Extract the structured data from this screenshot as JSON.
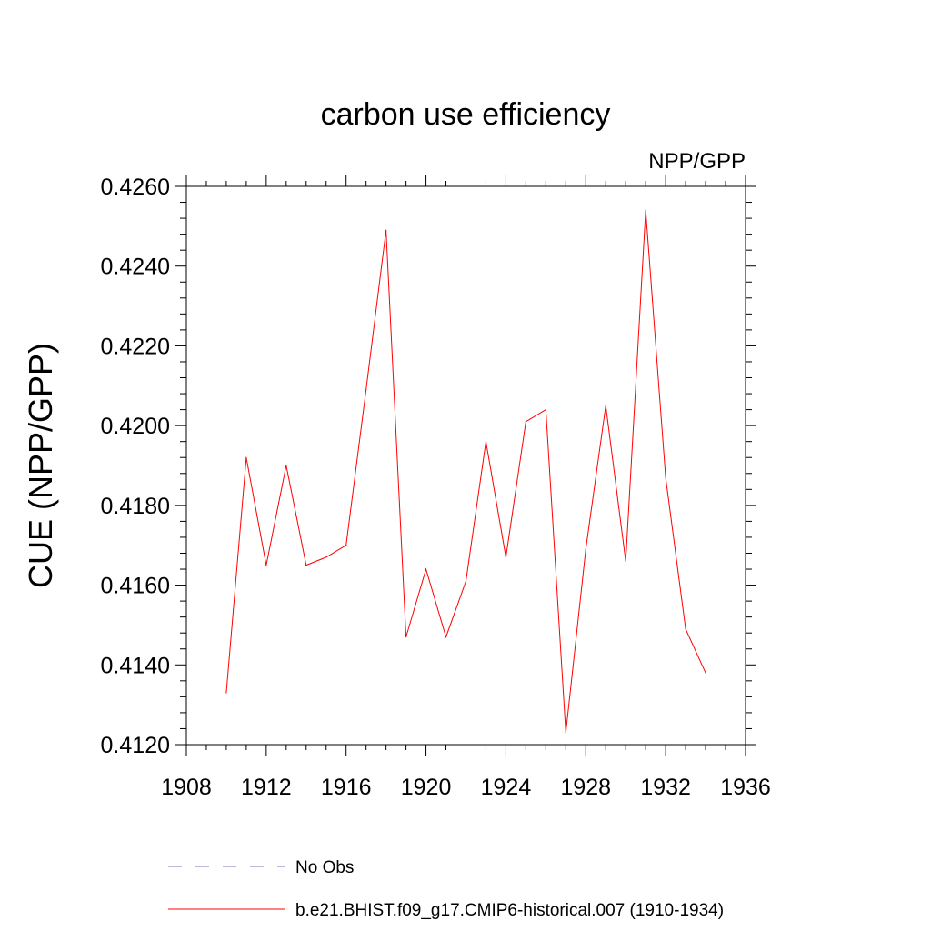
{
  "chart_data": {
    "type": "line",
    "title": "carbon use efficiency",
    "subtitle": "NPP/GPP",
    "xlabel": "",
    "ylabel": "CUE  (NPP/GPP)",
    "xlim": [
      1908,
      1936
    ],
    "ylim": [
      0.412,
      0.426
    ],
    "xticks": [
      "1908",
      "1912",
      "1916",
      "1920",
      "1924",
      "1928",
      "1932",
      "1936"
    ],
    "yticks": [
      "0.4120",
      "0.4140",
      "0.4160",
      "0.4180",
      "0.4200",
      "0.4220",
      "0.4240",
      "0.4260"
    ],
    "grid": false,
    "legend_position": "bottom",
    "series": [
      {
        "name": "No Obs",
        "color": "#7a6fc0",
        "style": "dashed",
        "x": [],
        "y": []
      },
      {
        "name": "b.e21.BHIST.f09_g17.CMIP6-historical.007 (1910-1934)",
        "color": "#ff0000",
        "style": "solid",
        "x": [
          1910,
          1911,
          1912,
          1913,
          1914,
          1915,
          1916,
          1917,
          1918,
          1919,
          1920,
          1921,
          1922,
          1923,
          1924,
          1925,
          1926,
          1927,
          1928,
          1929,
          1930,
          1931,
          1932,
          1933,
          1934
        ],
        "y": [
          0.4133,
          0.4192,
          0.4165,
          0.419,
          0.4165,
          0.4167,
          0.417,
          0.4209,
          0.4249,
          0.4147,
          0.4164,
          0.4147,
          0.4161,
          0.4196,
          0.4167,
          0.4201,
          0.4204,
          0.4123,
          0.4169,
          0.4205,
          0.4166,
          0.4254,
          0.4187,
          0.4149,
          0.4138
        ]
      }
    ]
  }
}
